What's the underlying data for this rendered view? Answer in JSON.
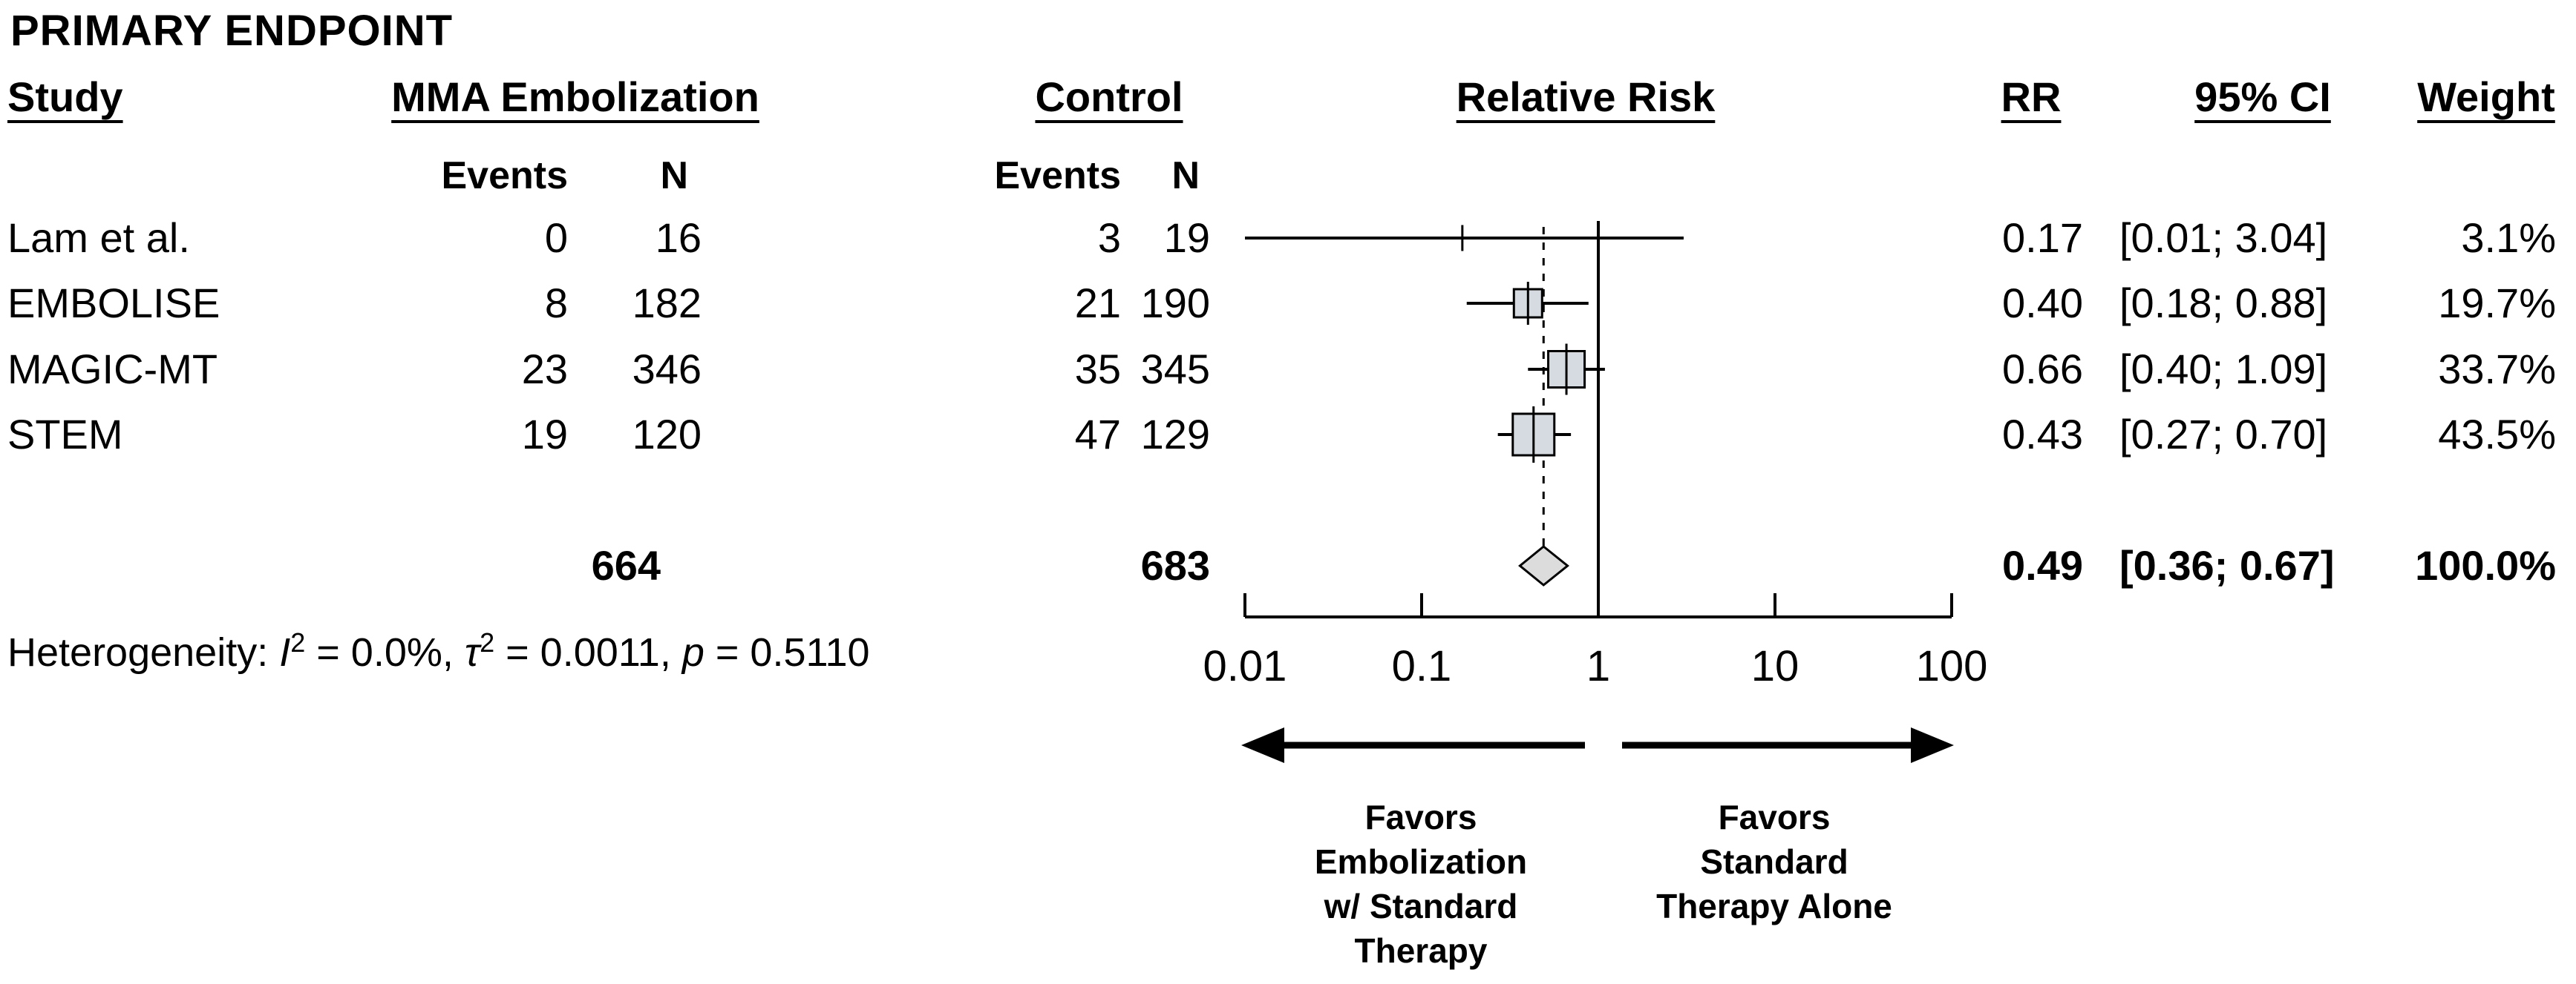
{
  "title": "PRIMARY ENDPOINT",
  "colors": {
    "marker_fill": "#d5dbe1",
    "diamond_fill": "#dcdcdc",
    "line": "#000000"
  },
  "table": {
    "headers": {
      "study": "Study",
      "treatment": "MMA Embolization",
      "control": "Control",
      "plot": "Relative Risk",
      "rr": "RR",
      "ci": "95% CI",
      "weight": "Weight"
    },
    "subheaders": {
      "events": "Events",
      "n": "N"
    },
    "rows": [
      {
        "study": "Lam et al.",
        "t_events": "0",
        "t_n": "16",
        "c_events": "3",
        "c_n": "19",
        "rr": "0.17",
        "ci": "[0.01; 3.04]",
        "weight": "3.1%"
      },
      {
        "study": "EMBOLISE",
        "t_events": "8",
        "t_n": "182",
        "c_events": "21",
        "c_n": "190",
        "rr": "0.40",
        "ci": "[0.18; 0.88]",
        "weight": "19.7%"
      },
      {
        "study": "MAGIC-MT",
        "t_events": "23",
        "t_n": "346",
        "c_events": "35",
        "c_n": "345",
        "rr": "0.66",
        "ci": "[0.40; 1.09]",
        "weight": "33.7%"
      },
      {
        "study": "STEM",
        "t_events": "19",
        "t_n": "120",
        "c_events": "47",
        "c_n": "129",
        "rr": "0.43",
        "ci": "[0.27; 0.70]",
        "weight": "43.5%"
      }
    ],
    "total": {
      "t_n": "664",
      "c_n": "683",
      "rr": "0.49",
      "ci": "[0.36; 0.67]",
      "weight": "100.0%"
    }
  },
  "heterogeneity": {
    "label": "Heterogeneity: ",
    "i2_var": "I",
    "i2_sup": "2",
    "i2_rest": " = 0.0%, ",
    "tau_var": "τ",
    "tau_sup": "2",
    "tau_rest": " = 0.0011, ",
    "p_var": "p",
    "p_rest": " = 0.5110"
  },
  "chart_data": {
    "type": "forest",
    "title": "PRIMARY ENDPOINT",
    "x_scale": "log10",
    "x_ticks": [
      0.01,
      0.1,
      1,
      10,
      100
    ],
    "x_tick_labels": [
      "0.01",
      "0.1",
      "1",
      "10",
      "100"
    ],
    "x_range": [
      0.01,
      100
    ],
    "reference_line": 1,
    "effect_measure": "Relative Risk",
    "studies": [
      {
        "name": "Lam et al.",
        "treatment_events": 0,
        "treatment_n": 16,
        "control_events": 3,
        "control_n": 19,
        "rr": 0.17,
        "ci_low": 0.01,
        "ci_high": 3.04,
        "weight_pct": 3.1
      },
      {
        "name": "EMBOLISE",
        "treatment_events": 8,
        "treatment_n": 182,
        "control_events": 21,
        "control_n": 190,
        "rr": 0.4,
        "ci_low": 0.18,
        "ci_high": 0.88,
        "weight_pct": 19.7
      },
      {
        "name": "MAGIC-MT",
        "treatment_events": 23,
        "treatment_n": 346,
        "control_events": 35,
        "control_n": 345,
        "rr": 0.66,
        "ci_low": 0.4,
        "ci_high": 1.09,
        "weight_pct": 33.7
      },
      {
        "name": "STEM",
        "treatment_events": 19,
        "treatment_n": 120,
        "control_events": 47,
        "control_n": 129,
        "rr": 0.43,
        "ci_low": 0.27,
        "ci_high": 0.7,
        "weight_pct": 43.5
      }
    ],
    "pooled": {
      "treatment_n": 664,
      "control_n": 683,
      "rr": 0.49,
      "ci_low": 0.36,
      "ci_high": 0.67,
      "weight_pct": 100.0
    },
    "heterogeneity_text": "Heterogeneity: I2 = 0.0%, τ2 = 0.0011, p = 0.5110",
    "xlabel_left": "Favors\nEmbolization\nw/ Standard\nTherapy",
    "xlabel_right": "Favors\nStandard\nTherapy Alone"
  }
}
